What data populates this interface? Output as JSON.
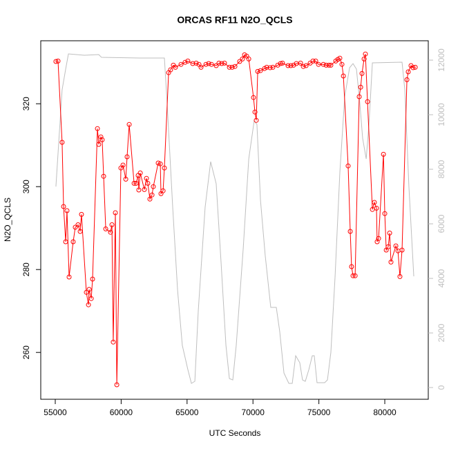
{
  "chart_data": {
    "type": "line",
    "title": "ORCAS RF11 N2O_QCLS",
    "xlabel": "UTC Seconds",
    "ylabel": "N2O_QCLS",
    "xlim": [
      53900,
      83300
    ],
    "xticks": [
      55000,
      60000,
      65000,
      70000,
      75000,
      80000
    ],
    "ylim": [
      248.7,
      335.2
    ],
    "yticks": [
      260,
      280,
      300,
      320
    ],
    "y2lim": [
      -430,
      12710
    ],
    "y2ticks": [
      0,
      2000,
      4000,
      6000,
      8000,
      10000,
      12000
    ],
    "series": [
      {
        "color": "#ff0000",
        "markers": true,
        "x": [
          55050,
          55210,
          55520,
          55630,
          55790,
          55890,
          56050,
          56360,
          56520,
          56730,
          56890,
          56990,
          57360,
          57520,
          57570,
          57730,
          57830,
          58200,
          58300,
          58460,
          58560,
          58670,
          58830,
          59190,
          59300,
          59400,
          59560,
          59670,
          59980,
          60140,
          60350,
          60450,
          60610,
          60980,
          61130,
          61290,
          61340,
          61450,
          61760,
          61920,
          62020,
          62180,
          62340,
          62440,
          62810,
          62970,
          63020,
          63180,
          63280,
          63600,
          63750,
          63960,
          64120,
          64540,
          64850,
          65060,
          65430,
          65690,
          65900,
          66060,
          66430,
          66640,
          66850,
          67210,
          67420,
          67630,
          67840,
          68210,
          68420,
          68630,
          68990,
          69200,
          69360,
          69520,
          69680,
          70040,
          70150,
          70250,
          70360,
          70570,
          70880,
          71040,
          71300,
          71510,
          71880,
          72090,
          72240,
          72660,
          72870,
          73080,
          73290,
          73610,
          73820,
          74030,
          74340,
          74550,
          74760,
          74970,
          75340,
          75550,
          75760,
          75910,
          76280,
          76440,
          76590,
          76750,
          76860,
          77220,
          77380,
          77480,
          77590,
          77750,
          78060,
          78170,
          78270,
          78430,
          78530,
          78690,
          79060,
          79210,
          79370,
          79420,
          79530,
          79900,
          80000,
          80110,
          80260,
          80370,
          80470,
          80840,
          81000,
          81150,
          81310,
          81680,
          81780,
          81990,
          82150,
          82310
        ],
        "values": [
          330.2,
          330.3,
          310.7,
          295.2,
          286.7,
          294.2,
          278.2,
          286.7,
          290.2,
          290.8,
          289.2,
          293.3,
          274.5,
          271.5,
          275.2,
          273.0,
          277.7,
          314.0,
          310.2,
          312.0,
          311.3,
          302.5,
          289.8,
          289.0,
          290.8,
          262.5,
          293.7,
          252.2,
          304.5,
          305.2,
          301.8,
          307.2,
          315.0,
          300.8,
          300.8,
          302.7,
          299.2,
          303.3,
          299.3,
          302.0,
          300.8,
          297.0,
          298.0,
          300.0,
          305.7,
          305.5,
          298.3,
          299.0,
          304.5,
          327.5,
          328.2,
          329.3,
          328.8,
          329.5,
          330.0,
          330.3,
          329.7,
          329.8,
          329.5,
          328.8,
          329.5,
          329.7,
          329.5,
          329.2,
          329.8,
          329.7,
          329.8,
          328.8,
          328.8,
          329.0,
          330.2,
          330.8,
          331.8,
          331.5,
          330.8,
          321.5,
          318.0,
          316.0,
          327.8,
          328.0,
          328.5,
          328.8,
          328.7,
          328.8,
          329.3,
          329.7,
          329.8,
          329.2,
          329.2,
          329.3,
          329.7,
          329.8,
          329.0,
          329.2,
          329.8,
          330.3,
          330.3,
          329.5,
          329.5,
          329.3,
          329.3,
          329.3,
          330.3,
          330.7,
          331.0,
          329.5,
          326.7,
          305.0,
          289.2,
          280.7,
          278.5,
          278.5,
          321.7,
          324.0,
          327.3,
          330.8,
          332.0,
          320.5,
          294.5,
          296.2,
          294.8,
          286.7,
          287.5,
          307.8,
          293.5,
          284.7,
          285.5,
          288.8,
          281.8,
          285.7,
          284.5,
          278.3,
          284.7,
          325.8,
          327.7,
          329.2,
          328.7,
          328.8
        ]
      },
      {
        "color": "#bebebe",
        "axis": "y2",
        "markers": false,
        "x": [
          55050,
          55520,
          55790,
          56000,
          57200,
          58300,
          58510,
          61390,
          63280,
          63490,
          63910,
          64280,
          64640,
          65060,
          65330,
          65590,
          65850,
          66370,
          66790,
          67210,
          67580,
          67950,
          68210,
          68470,
          68730,
          69260,
          69680,
          70090,
          70300,
          70570,
          70930,
          71350,
          71770,
          72030,
          72350,
          72720,
          72980,
          73240,
          73550,
          73760,
          73970,
          74240,
          74500,
          74650,
          74860,
          75440,
          75650,
          75910,
          76230,
          76590,
          76960,
          77330,
          77590,
          77850,
          78110,
          78320,
          78590,
          78800,
          79060,
          81310,
          81520,
          81830,
          82200
        ],
        "values": [
          7367,
          10911,
          11671,
          12228,
          12177,
          12203,
          12101,
          12076,
          12076,
          10405,
          6608,
          3570,
          1544,
          658,
          152,
          228,
          2810,
          6608,
          8278,
          7468,
          4582,
          1544,
          329,
          278,
          1544,
          5089,
          8380,
          9772,
          9646,
          6861,
          4835,
          2937,
          2937,
          2051,
          532,
          152,
          152,
          1165,
          911,
          278,
          228,
          658,
          1165,
          1165,
          177,
          177,
          278,
          1291,
          4076,
          7873,
          10658,
          11722,
          11873,
          11671,
          10405,
          9139,
          8380,
          9646,
          11899,
          11924,
          10911,
          7367,
          4076
        ]
      }
    ]
  }
}
